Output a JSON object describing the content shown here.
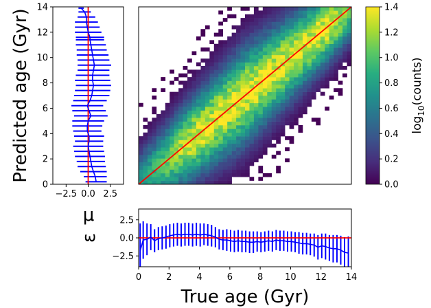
{
  "chart_data": [
    {
      "name": "age-2d-histogram",
      "type": "heatmap",
      "xlabel": "True age (Gyr)",
      "ylabel": "Predicted age (Gyr)",
      "xlim": [
        0,
        14
      ],
      "ylim": [
        0,
        14
      ],
      "overlay": "one-to-one line, red",
      "colorbar": {
        "label": "log10(counts)",
        "range": [
          0.0,
          1.4
        ],
        "ticks": [
          "0.0",
          "0.2",
          "0.4",
          "0.6",
          "0.8",
          "1.0",
          "1.2",
          "1.4"
        ],
        "colormap": "viridis"
      },
      "x_ticks": [],
      "y_ticks": [
        "0",
        "2",
        "4",
        "6",
        "8",
        "10",
        "12",
        "14"
      ]
    },
    {
      "name": "left-residual-profile",
      "type": "line",
      "xlabel": "",
      "x_ticks": [
        "−2.5",
        "0.0",
        "2.5"
      ],
      "xlim": [
        -4,
        4
      ],
      "ylim": [
        0,
        14
      ],
      "reference_line_x": 0,
      "y": [
        0.2,
        0.6,
        1.0,
        1.4,
        1.8,
        2.2,
        2.6,
        3.0,
        3.4,
        3.8,
        4.2,
        4.6,
        5.0,
        5.4,
        5.8,
        6.2,
        6.6,
        7.0,
        7.4,
        7.8,
        8.2,
        8.6,
        9.0,
        9.4,
        9.8,
        10.2,
        10.6,
        11.0,
        11.4,
        11.6,
        12.0,
        12.4,
        12.8,
        13.2,
        13.6,
        13.9
      ],
      "mean": [
        0.9,
        0.8,
        0.6,
        0.4,
        0.3,
        0.2,
        0.1,
        0.0,
        0.1,
        0.1,
        -0.1,
        -0.1,
        0.0,
        0.3,
        0.1,
        -0.1,
        0.2,
        0.4,
        0.5,
        0.6,
        0.5,
        0.5,
        0.6,
        0.7,
        0.6,
        0.5,
        0.4,
        0.3,
        0.2,
        0.2,
        0.0,
        -0.1,
        -0.2,
        -0.2,
        -0.4,
        -0.8
      ],
      "std": [
        1.2,
        1.3,
        1.5,
        1.6,
        1.6,
        1.7,
        1.7,
        1.7,
        1.6,
        1.7,
        1.6,
        1.7,
        1.8,
        1.9,
        1.9,
        1.8,
        1.9,
        2.0,
        2.0,
        2.0,
        2.0,
        1.9,
        1.8,
        1.9,
        1.8,
        1.8,
        1.7,
        1.7,
        1.6,
        1.6,
        1.5,
        1.4,
        1.3,
        1.0,
        0.7,
        0.3
      ]
    },
    {
      "name": "bottom-residual-profile",
      "type": "line",
      "xlabel": "True age (Gyr)",
      "ylabel": "μ\nε",
      "xlim": [
        0,
        14
      ],
      "ylim": [
        -4,
        4
      ],
      "reference_line_y": 0,
      "x_ticks": [
        "0",
        "2",
        "4",
        "6",
        "8",
        "10",
        "12",
        "14"
      ],
      "y_ticks": [
        "2.5",
        "0.0",
        "−2.5"
      ],
      "x": [
        0.1,
        0.3,
        0.55,
        0.8,
        1.05,
        1.3,
        1.55,
        1.8,
        2.05,
        2.3,
        2.55,
        2.8,
        3.05,
        3.3,
        3.55,
        3.8,
        4.05,
        4.3,
        4.55,
        4.8,
        5.05,
        5.3,
        5.55,
        5.8,
        6.05,
        6.3,
        6.55,
        6.8,
        7.05,
        7.3,
        7.55,
        7.8,
        8.05,
        8.3,
        8.55,
        8.8,
        9.05,
        9.3,
        9.55,
        9.8,
        10.05,
        10.3,
        10.55,
        10.8,
        11.05,
        11.3,
        11.55,
        11.8,
        12.05,
        12.3,
        12.55,
        12.8,
        13.05,
        13.3,
        13.55,
        13.8
      ],
      "mean": [
        -1.8,
        -0.3,
        -0.2,
        0.1,
        -0.4,
        -0.1,
        0.0,
        0.1,
        0.3,
        0.4,
        0.5,
        0.4,
        0.5,
        0.5,
        0.4,
        0.5,
        0.4,
        0.5,
        0.4,
        0.3,
        0.1,
        -0.2,
        -0.3,
        -0.3,
        -0.4,
        -0.5,
        -0.4,
        -0.5,
        -0.5,
        -0.6,
        -0.6,
        -0.5,
        -0.6,
        -0.5,
        -0.4,
        -0.5,
        -0.3,
        -0.4,
        -0.4,
        -0.5,
        -0.5,
        -0.6,
        -0.7,
        -0.8,
        -0.8,
        -0.9,
        -1.0,
        -1.3,
        -1.1,
        -1.2,
        -1.4,
        -1.5,
        -1.5,
        -1.7,
        -2.0,
        -2.1
      ],
      "std": [
        3.8,
        2.6,
        2.2,
        1.8,
        1.6,
        1.6,
        1.6,
        1.6,
        1.6,
        1.6,
        1.6,
        1.6,
        1.6,
        1.6,
        1.6,
        1.6,
        1.6,
        1.5,
        1.5,
        1.5,
        1.4,
        1.4,
        1.4,
        1.5,
        1.5,
        1.5,
        1.5,
        1.5,
        1.5,
        1.5,
        1.5,
        1.4,
        1.4,
        1.4,
        1.4,
        1.4,
        1.4,
        1.4,
        1.4,
        1.4,
        1.4,
        1.4,
        1.5,
        1.5,
        1.5,
        1.5,
        1.6,
        1.7,
        1.7,
        1.8,
        1.8,
        1.9,
        1.9,
        2.0,
        2.1,
        2.3
      ]
    }
  ],
  "colors": {
    "profile": "#0000ff",
    "reference": "#ff0000",
    "bin_grid": "#ffffff"
  }
}
